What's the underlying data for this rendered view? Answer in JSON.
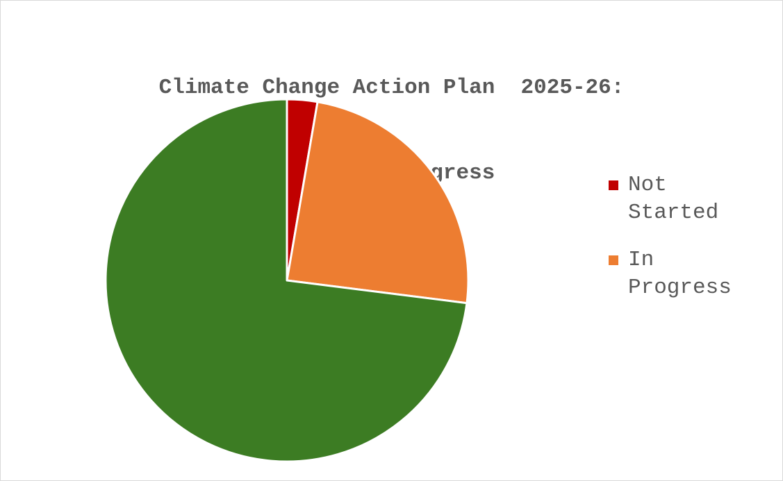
{
  "chart_data": {
    "type": "pie",
    "title_lines": [
      "Climate Change Action Plan  2025-26:",
      "Overall Progress"
    ],
    "slices": [
      {
        "label": "Not Started",
        "value": 2.7,
        "color": "#C00000",
        "legend_lines": [
          "Not",
          "Started"
        ]
      },
      {
        "label": "In Progress",
        "value": 24.3,
        "color": "#ED7D31",
        "legend_lines": [
          "In",
          "Progress"
        ]
      },
      {
        "label": "",
        "value": 73.0,
        "color": "#3C7C23",
        "legend_lines": []
      }
    ],
    "legend_placement": "right",
    "start_angle": "12 o'clock, clockwise"
  }
}
